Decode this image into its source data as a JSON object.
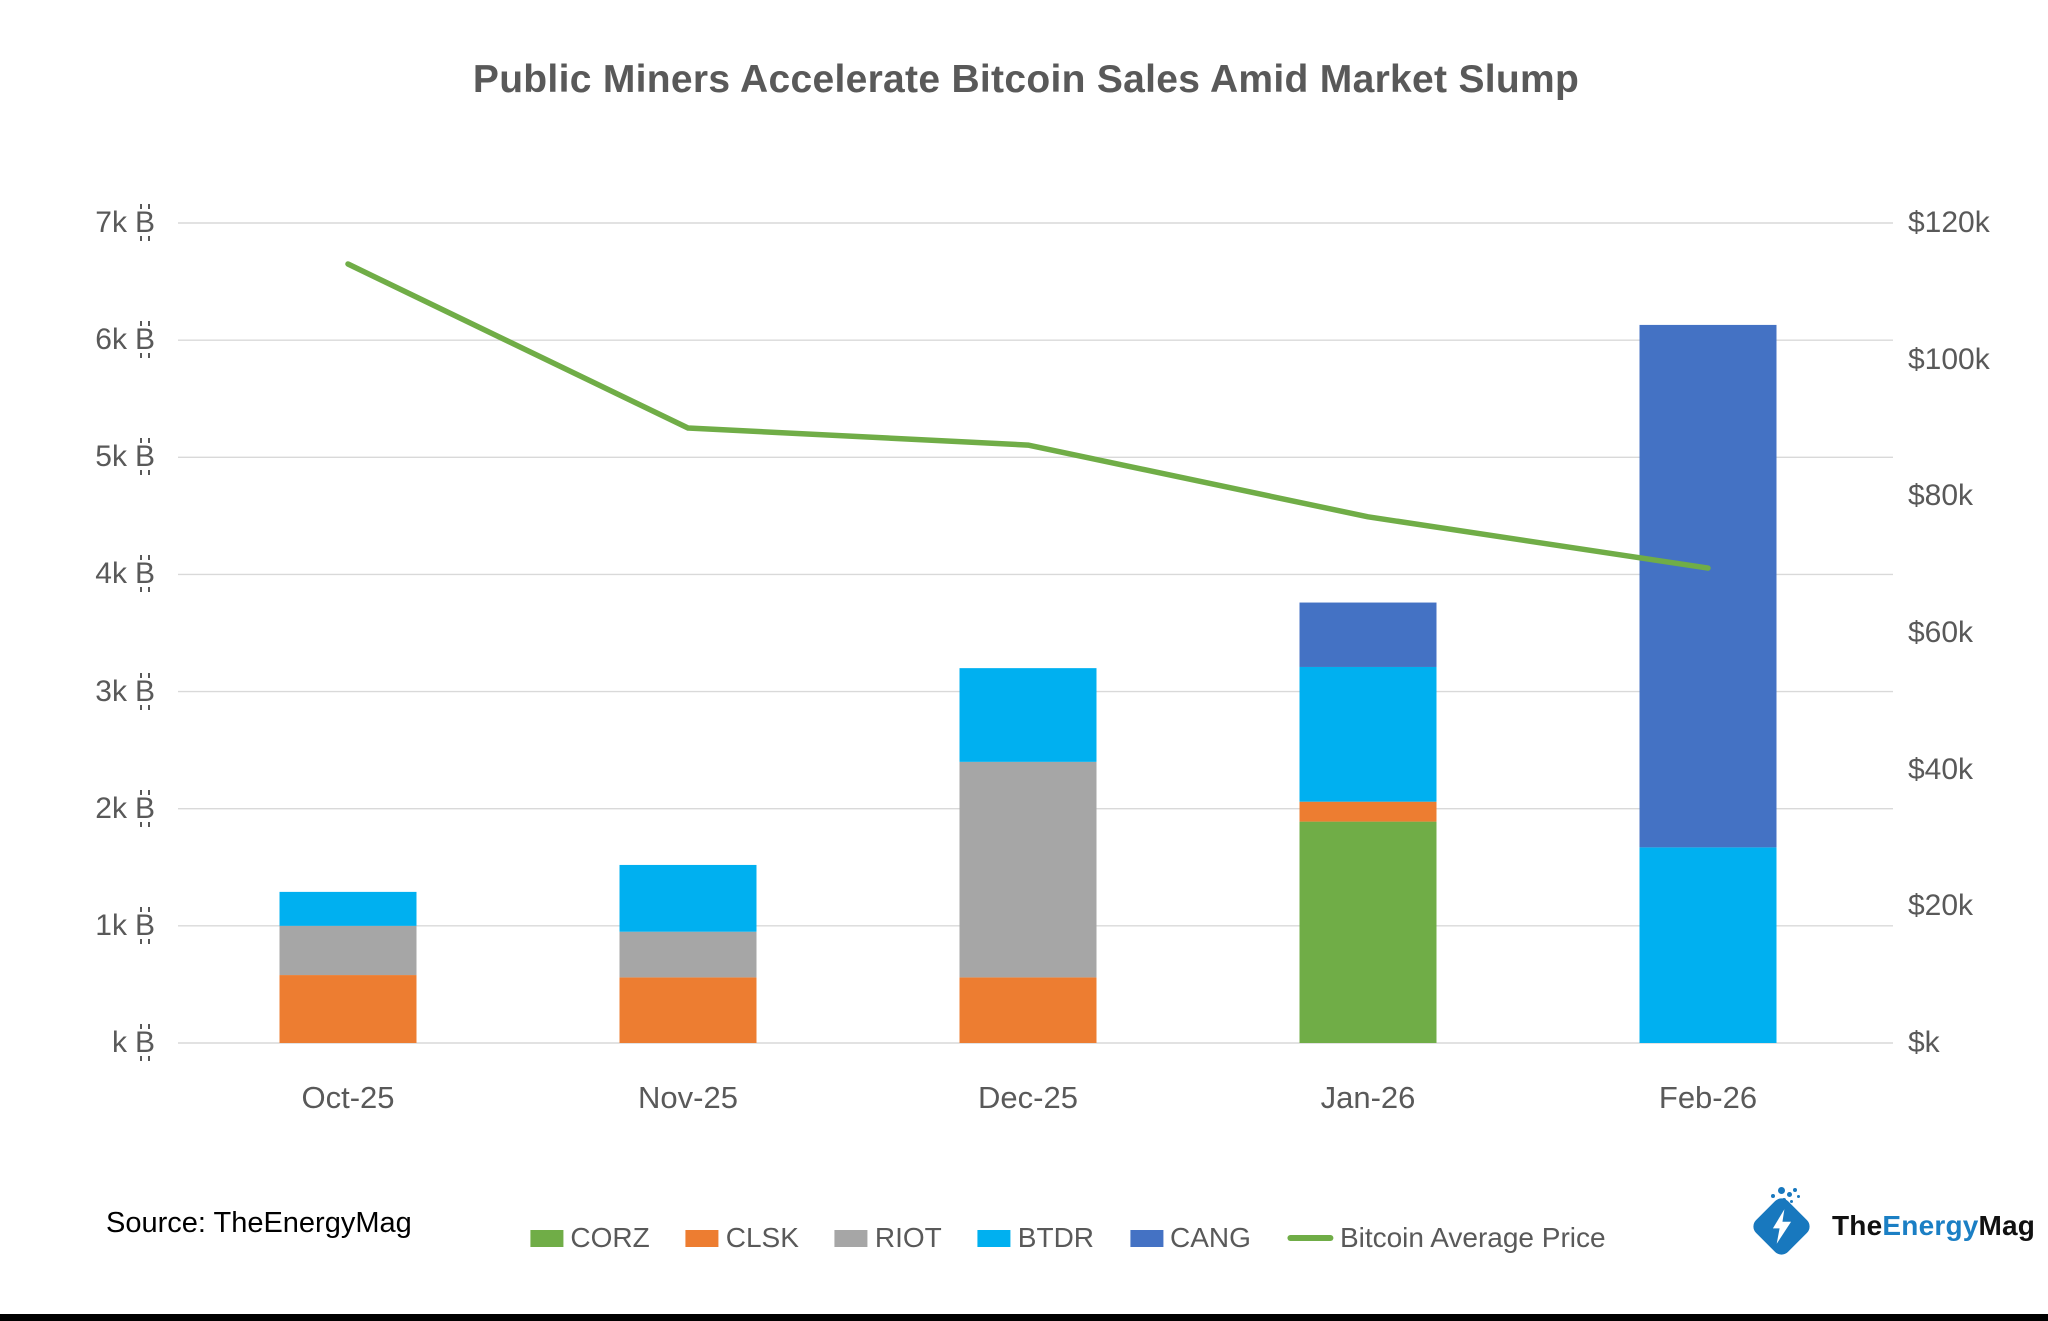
{
  "title": "Public Miners Accelerate Bitcoin Sales Amid Market Slump",
  "source_note": "Source: TheEnergyMag",
  "logo": {
    "part1": "The",
    "part2": "Energy",
    "part3": "Mag"
  },
  "colors": {
    "title_text": "#595959",
    "axis_text": "#595959",
    "grid": "#D9D9D9",
    "corz_green": "#70AD47",
    "clsk_orange": "#ED7D31",
    "riot_gray": "#A6A6A6",
    "btdr_cyan": "#00B0F0",
    "cang_blue": "#4472C4",
    "price_line_green": "#70AD47",
    "logo_blue": "#1878BE",
    "logo_text_blue": "#1B7FC4",
    "footer_bar": "#000000"
  },
  "chart_data": {
    "type": "bar",
    "subtype": "stacked-bars-with-line-overlay",
    "title": "Public Miners Accelerate Bitcoin Sales Amid Market Slump",
    "categories": [
      "Oct-25",
      "Nov-25",
      "Dec-25",
      "Jan-26",
      "Feb-26"
    ],
    "series": [
      {
        "name": "CORZ",
        "type": "bar",
        "axis": "left",
        "color": "#70AD47",
        "values": [
          0,
          0,
          0,
          1890,
          0
        ]
      },
      {
        "name": "CLSK",
        "type": "bar",
        "axis": "left",
        "color": "#ED7D31",
        "values": [
          580,
          560,
          560,
          170,
          0
        ]
      },
      {
        "name": "RIOT",
        "type": "bar",
        "axis": "left",
        "color": "#A6A6A6",
        "values": [
          420,
          390,
          1840,
          0,
          0
        ]
      },
      {
        "name": "BTDR",
        "type": "bar",
        "axis": "left",
        "color": "#00B0F0",
        "values": [
          290,
          570,
          800,
          1150,
          1670
        ]
      },
      {
        "name": "CANG",
        "type": "bar",
        "axis": "left",
        "color": "#4472C4",
        "values": [
          0,
          0,
          0,
          550,
          4460
        ]
      },
      {
        "name": "Bitcoin Average Price",
        "type": "line",
        "axis": "right",
        "color": "#70AD47",
        "values": [
          114000,
          90000,
          87500,
          77000,
          69500
        ]
      }
    ],
    "stack_order_bottom_to_top": [
      "CORZ",
      "CLSK",
      "RIOT",
      "BTDR",
      "CANG"
    ],
    "bar_totals": [
      1290,
      1520,
      3200,
      3760,
      6130
    ],
    "left_axis": {
      "min": 0,
      "max": 7000,
      "unit": "BTC",
      "suffix": "฿",
      "tick_labels": [
        "k",
        "1k",
        "2k",
        "3k",
        "4k",
        "5k",
        "6k",
        "7k"
      ]
    },
    "right_axis": {
      "min": 0,
      "max": 120000,
      "unit": "USD",
      "tick_labels": [
        "$k",
        "$20k",
        "$40k",
        "$60k",
        "$80k",
        "$100k",
        "$120k"
      ]
    },
    "grid": "horizontal",
    "legend_position": "bottom"
  }
}
